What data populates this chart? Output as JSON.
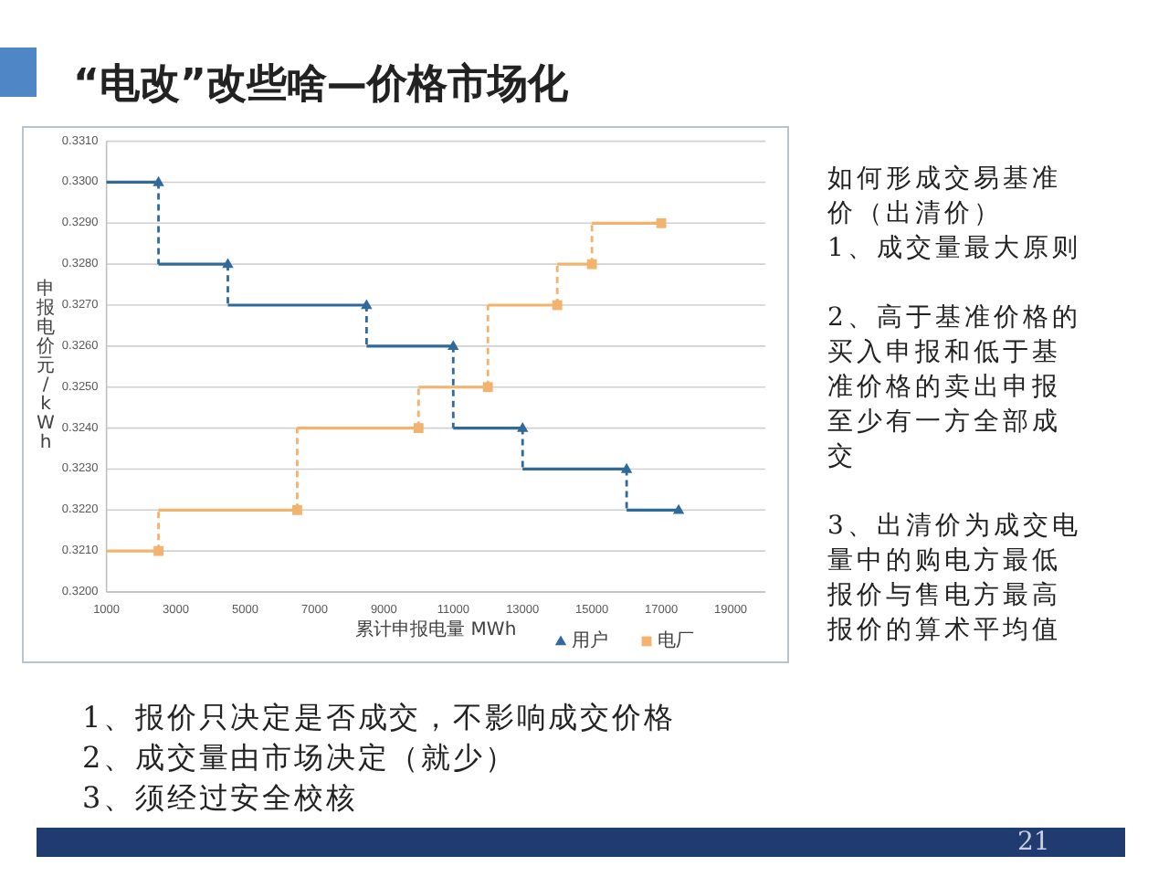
{
  "chart_data": {
    "type": "step",
    "title": "“电改”改些啥—价格市场化",
    "xlabel": "累计申报电量 MWh",
    "ylabel": "申报电价元/kWh",
    "xlim": [
      1000,
      20000
    ],
    "xticks": [
      1000,
      3000,
      5000,
      7000,
      9000,
      11000,
      13000,
      15000,
      17000,
      19000
    ],
    "ylim": [
      0.32,
      0.331
    ],
    "yticks": [
      {
        "value": 0.32,
        "label": "0.3200"
      },
      {
        "value": 0.321,
        "label": "0.3210"
      },
      {
        "value": 0.322,
        "label": "0.3220"
      },
      {
        "value": 0.323,
        "label": "0.3230"
      },
      {
        "value": 0.324,
        "label": "0.3240"
      },
      {
        "value": 0.325,
        "label": "0.3250"
      },
      {
        "value": 0.326,
        "label": "0.3260"
      },
      {
        "value": 0.327,
        "label": "0.3270"
      },
      {
        "value": 0.328,
        "label": "0.3280"
      },
      {
        "value": 0.329,
        "label": "0.3290"
      },
      {
        "value": 0.33,
        "label": "0.3300"
      },
      {
        "value": 0.331,
        "label": "0.3310"
      }
    ],
    "grid": "y",
    "legend": "bottom",
    "series": [
      {
        "name": "用户",
        "color": "#2f6a9b",
        "marker": "triangle",
        "x": [
          1000,
          2500,
          4500,
          8500,
          11000,
          13000,
          16000,
          17500
        ],
        "values": [
          0.33,
          0.33,
          0.328,
          0.327,
          0.326,
          0.324,
          0.323,
          0.322
        ]
      },
      {
        "name": "电厂",
        "color": "#f3b26e",
        "marker": "square",
        "x": [
          1000,
          2500,
          6500,
          10000,
          12000,
          14000,
          15000,
          17000
        ],
        "values": [
          0.321,
          0.321,
          0.322,
          0.324,
          0.325,
          0.327,
          0.328,
          0.329
        ]
      }
    ],
    "annotations": [
      "如何形成交易基准价（出清价）",
      "1、成交量最大原则",
      "2、高于基准价格的买入申报和低于基准价格的卖出申报至少有一方全部成交",
      "3、出清价为成交电量中的购电方最低报价与售电方最高报价的算术平均值",
      "1、报价只决定是否成交，不影响成交价格",
      "2、成交量由市场决定（就少）",
      "3、须经过安全校核",
      "21"
    ]
  }
}
